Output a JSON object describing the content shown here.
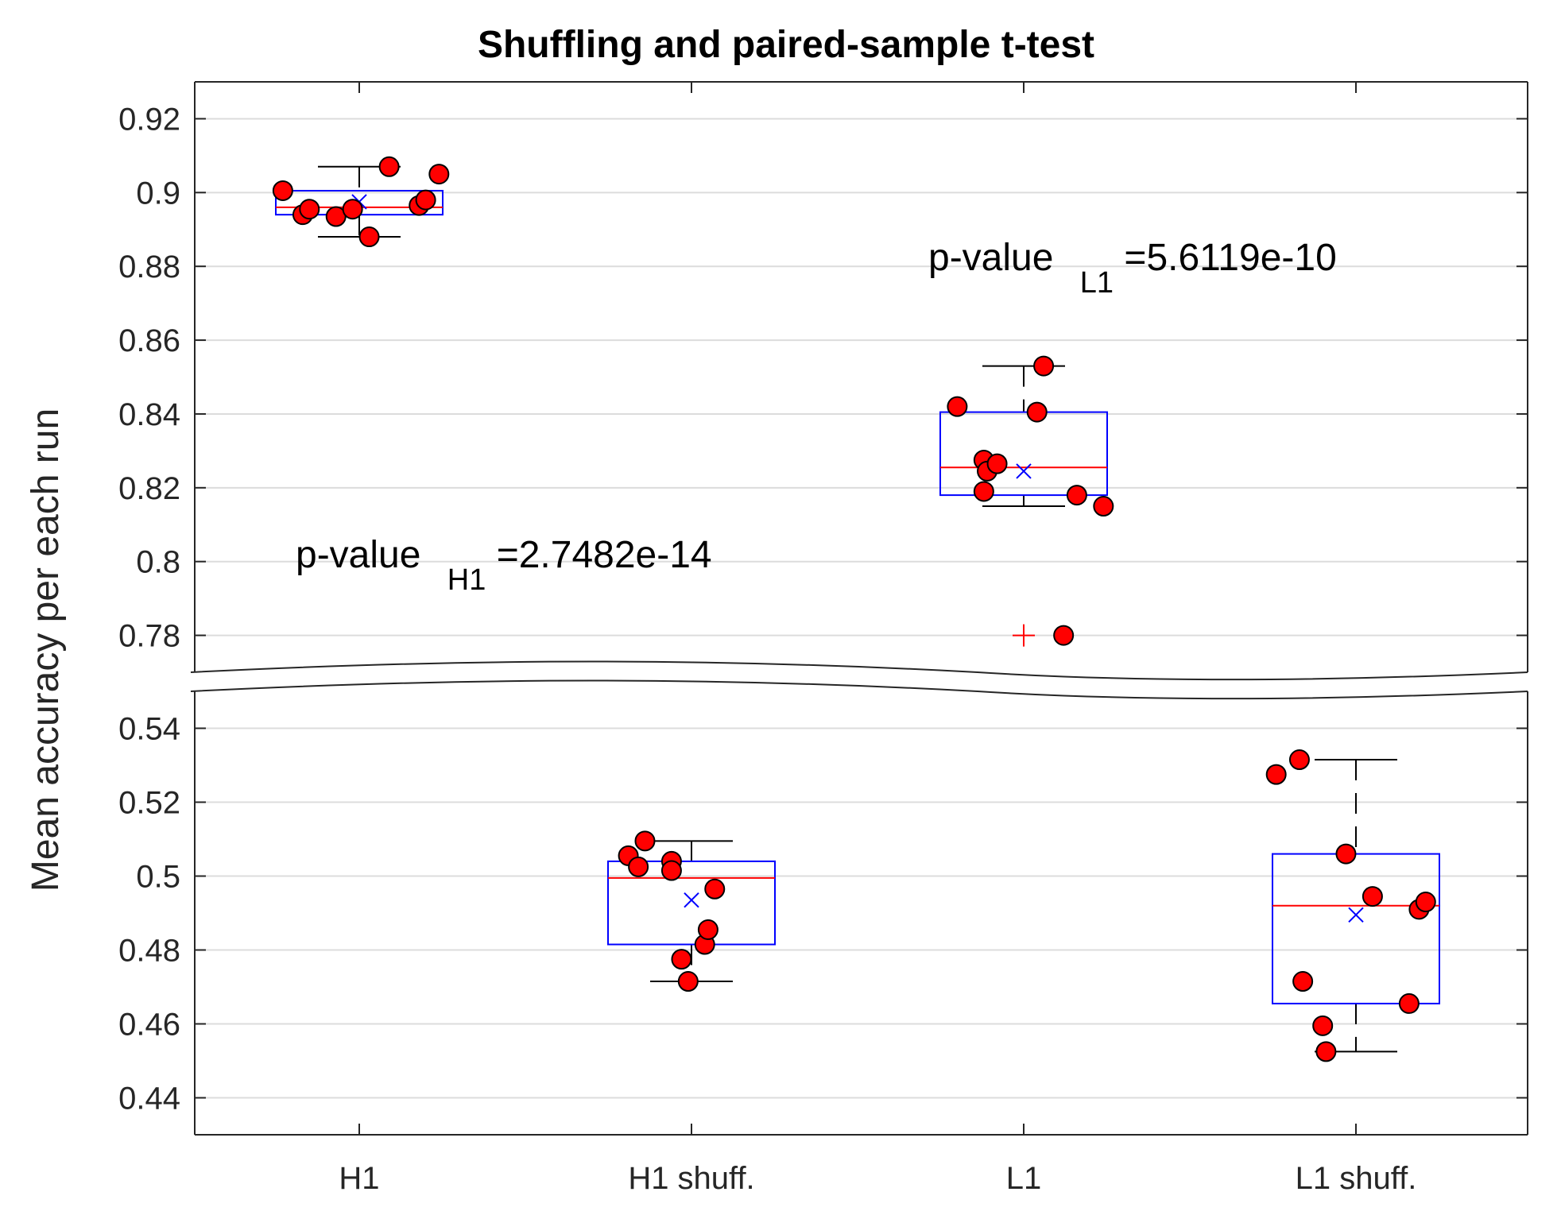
{
  "chart_data": {
    "type": "box",
    "title": "Shuffling and paired-sample t-test",
    "xlabel": "",
    "ylabel": "Mean accuracy per each run",
    "categories": [
      "H1",
      "H1 shuff.",
      "L1",
      "L1 shuff."
    ],
    "axis_break": {
      "upper_ylim": [
        0.77,
        0.93
      ],
      "upper_ticks": [
        0.78,
        0.8,
        0.82,
        0.84,
        0.86,
        0.88,
        0.9,
        0.92
      ],
      "upper_tick_labels": [
        "0.78",
        "0.8",
        "0.82",
        "0.84",
        "0.86",
        "0.88",
        "0.9",
        "0.92"
      ],
      "lower_ylim": [
        0.43,
        0.55
      ],
      "lower_ticks": [
        0.44,
        0.46,
        0.48,
        0.5,
        0.52,
        0.54
      ],
      "lower_tick_labels": [
        "0.44",
        "0.46",
        "0.48",
        "0.5",
        "0.52",
        "0.54"
      ]
    },
    "grid": true,
    "boxes": [
      {
        "category": "H1",
        "q1": 0.894,
        "median": 0.896,
        "q3": 0.9005,
        "whisker_low": 0.888,
        "whisker_high": 0.907,
        "mean": 0.8975,
        "outliers": []
      },
      {
        "category": "H1 shuff.",
        "q1": 0.4815,
        "median": 0.4995,
        "q3": 0.504,
        "whisker_low": 0.4715,
        "whisker_high": 0.5095,
        "mean": 0.4935,
        "outliers": []
      },
      {
        "category": "L1",
        "q1": 0.818,
        "median": 0.8255,
        "q3": 0.8405,
        "whisker_low": 0.815,
        "whisker_high": 0.853,
        "mean": 0.8245,
        "outliers": [
          0.78
        ]
      },
      {
        "category": "L1 shuff.",
        "q1": 0.4655,
        "median": 0.492,
        "q3": 0.506,
        "whisker_low": 0.4525,
        "whisker_high": 0.5315,
        "mean": 0.4895,
        "outliers": []
      }
    ],
    "points": [
      {
        "category": "H1",
        "jitter": [
          -0.23,
          -0.17,
          -0.15,
          -0.07,
          -0.02,
          0.03,
          0.09,
          0.18,
          0.2,
          0.24
        ],
        "values": [
          0.9005,
          0.894,
          0.8955,
          0.8935,
          0.8955,
          0.888,
          0.907,
          0.8965,
          0.898,
          0.905
        ]
      },
      {
        "category": "H1 shuff.",
        "jitter": [
          -0.19,
          -0.16,
          -0.14,
          -0.06,
          -0.06,
          -0.03,
          -0.01,
          0.04,
          0.05,
          0.07
        ],
        "values": [
          0.5055,
          0.5025,
          0.5095,
          0.504,
          0.5015,
          0.4775,
          0.4715,
          0.4815,
          0.4855,
          0.4965
        ]
      },
      {
        "category": "L1",
        "jitter": [
          -0.2,
          -0.12,
          -0.12,
          -0.11,
          -0.08,
          0.04,
          0.06,
          0.12,
          0.16,
          0.24
        ],
        "values": [
          0.842,
          0.819,
          0.8275,
          0.8245,
          0.8265,
          0.8405,
          0.853,
          0.78,
          0.818,
          0.815
        ]
      },
      {
        "category": "L1 shuff.",
        "jitter": [
          -0.24,
          -0.17,
          -0.16,
          -0.1,
          -0.09,
          -0.03,
          0.05,
          0.16,
          0.19,
          0.21
        ],
        "values": [
          0.5275,
          0.5315,
          0.4715,
          0.4595,
          0.4525,
          0.506,
          0.4945,
          0.4655,
          0.491,
          0.493
        ]
      }
    ],
    "annotations": [
      {
        "text": "p-value",
        "subscript": "H1",
        "suffix": "=2.7482e-14",
        "x_category_pos": 0.7,
        "y_value": 0.8,
        "panel": "upper"
      },
      {
        "text": "p-value",
        "subscript": "L1",
        "suffix": "=5.6119e-10",
        "x_category_pos": 2.6,
        "y_value": 0.88,
        "panel": "upper"
      }
    ],
    "colors": {
      "box": "#0000ff",
      "median": "#ff0000",
      "mean_marker": "#0000ff",
      "outlier": "#ff0000",
      "point_fill": "#ff0000",
      "point_edge": "#000000",
      "whisker": "#000000",
      "grid": "#dcdcdc",
      "axis": "#262626"
    }
  }
}
